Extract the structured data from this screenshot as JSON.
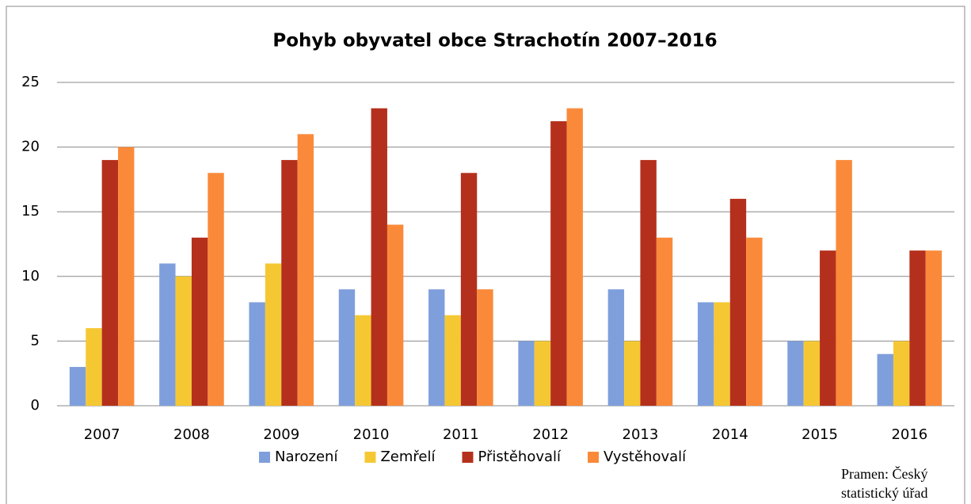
{
  "chart_data": {
    "type": "bar",
    "title": "Pohyb obyvatel obce Strachotín 2007–2016",
    "categories": [
      "2007",
      "2008",
      "2009",
      "2010",
      "2011",
      "2012",
      "2013",
      "2014",
      "2015",
      "2016"
    ],
    "series": [
      {
        "name": "Narození",
        "color": "#7f9fdc",
        "values": [
          3,
          11,
          8,
          9,
          9,
          5,
          9,
          8,
          5,
          4
        ]
      },
      {
        "name": "Zemřelí",
        "color": "#f5c833",
        "values": [
          6,
          10,
          11,
          7,
          7,
          5,
          5,
          8,
          5,
          5
        ]
      },
      {
        "name": "Přistěhovalí",
        "color": "#b5301c",
        "values": [
          19,
          13,
          19,
          23,
          18,
          22,
          19,
          16,
          12,
          12
        ]
      },
      {
        "name": "Vystěhovalí",
        "color": "#fa8a3a",
        "values": [
          20,
          18,
          21,
          14,
          9,
          23,
          13,
          13,
          19,
          12
        ]
      }
    ],
    "ylim": [
      0,
      25
    ],
    "yticks": [
      0,
      5,
      10,
      15,
      20,
      25
    ],
    "grid": true,
    "legend": "bottom",
    "source": "Pramen: Český statistický úřad"
  }
}
